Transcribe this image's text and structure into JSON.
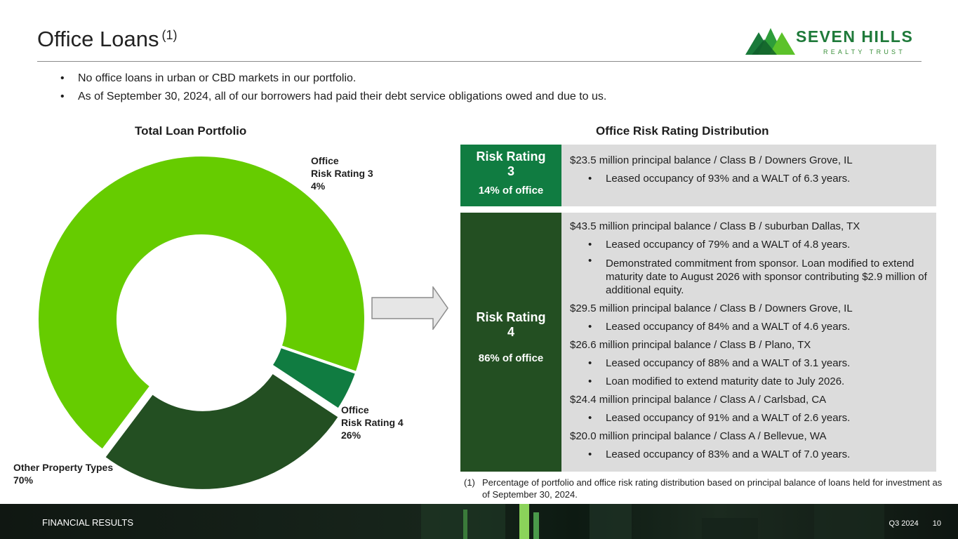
{
  "header": {
    "title": "Office Loans",
    "title_sup": "(1)",
    "logo_name": "SEVEN HILLS",
    "logo_sub": "REALTY TRUST"
  },
  "bullets": [
    "No office loans in urban or CBD markets in our portfolio.",
    "As of September 30, 2024, all of our borrowers had paid their debt service obligations owed and due to us."
  ],
  "colors": {
    "other": "#66cc00",
    "rating3": "#107c41",
    "rating4": "#234f22",
    "band": "#dcdcdc"
  },
  "chart_data": {
    "type": "pie",
    "title": "Total Loan Portfolio",
    "variant": "donut",
    "slices": [
      {
        "name": "Other Property Types",
        "label_line1": "Other Property Types",
        "value": 70,
        "value_label": "70%",
        "color": "#66cc00"
      },
      {
        "name": "Office Risk Rating 3",
        "label_line1": "Office",
        "label_line2": "Risk Rating 3",
        "value": 4,
        "value_label": "4%",
        "color": "#107c41"
      },
      {
        "name": "Office Risk Rating 4",
        "label_line1": "Office",
        "label_line2": "Risk Rating 4",
        "value": 26,
        "value_label": "26%",
        "color": "#234f22"
      }
    ]
  },
  "distribution": {
    "title": "Office Risk Rating Distribution",
    "rating3": {
      "label_line1": "Risk Rating",
      "label_line2": "3",
      "pct": "14% of office",
      "lines": [
        {
          "text": "$23.5 million principal balance / Class B / Downers Grove, IL",
          "sub": false
        },
        {
          "text": "Leased occupancy of 93% and a WALT of 6.3 years.",
          "sub": true
        }
      ]
    },
    "rating4": {
      "label_line1": "Risk Rating",
      "label_line2": "4",
      "pct": "86% of office",
      "lines": [
        {
          "text": "$43.5 million principal balance / Class B / suburban Dallas, TX",
          "sub": false
        },
        {
          "text": "Leased occupancy of 79% and a WALT of 4.8 years.",
          "sub": true
        },
        {
          "text": "Demonstrated commitment from sponsor. Loan modified to extend maturity date to August 2026 with sponsor contributing $2.9 million of additional equity.",
          "sub": true,
          "multi": true
        },
        {
          "text": "$29.5 million principal balance / Class B / Downers Grove, IL",
          "sub": false
        },
        {
          "text": "Leased occupancy of 84% and a WALT of 4.6 years.",
          "sub": true
        },
        {
          "text": "$26.6 million principal balance / Class B / Plano, TX",
          "sub": false
        },
        {
          "text": "Leased occupancy of 88% and a WALT of 3.1 years.",
          "sub": true
        },
        {
          "text": "Loan modified to extend maturity date to July 2026.",
          "sub": true
        },
        {
          "text": "$24.4 million principal balance / Class A / Carlsbad, CA",
          "sub": false
        },
        {
          "text": "Leased occupancy of 91% and a WALT of 2.6 years.",
          "sub": true
        },
        {
          "text": "$20.0 million principal balance / Class A / Bellevue, WA",
          "sub": false
        },
        {
          "text": "Leased occupancy of 83% and a WALT of 7.0 years.",
          "sub": true
        }
      ]
    }
  },
  "footnote": {
    "num": "(1)",
    "text": "Percentage of portfolio and office risk rating distribution based on principal balance of loans held for investment as of September 30, 2024."
  },
  "footer": {
    "left": "FINANCIAL RESULTS",
    "quarter": "Q3 2024",
    "page": "10"
  }
}
